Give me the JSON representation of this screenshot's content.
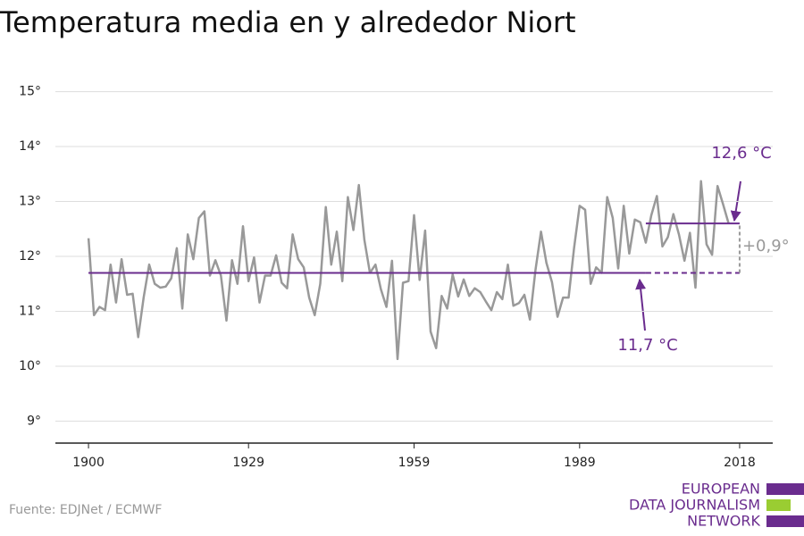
{
  "chart_data": {
    "type": "line",
    "title": "Temperatura media en y alrededor Niort",
    "source": "Fuente: EDJNet / ECMWF",
    "logo": [
      "EUROPEAN",
      "DATA JOURNALISM",
      "NETWORK"
    ],
    "x": [
      1900,
      1901,
      1902,
      1903,
      1904,
      1905,
      1906,
      1907,
      1908,
      1909,
      1910,
      1911,
      1912,
      1913,
      1914,
      1915,
      1916,
      1917,
      1918,
      1919,
      1920,
      1921,
      1922,
      1923,
      1924,
      1925,
      1926,
      1927,
      1928,
      1929,
      1930,
      1931,
      1932,
      1933,
      1934,
      1935,
      1936,
      1937,
      1938,
      1939,
      1940,
      1941,
      1942,
      1943,
      1944,
      1945,
      1946,
      1947,
      1948,
      1949,
      1950,
      1951,
      1952,
      1953,
      1954,
      1955,
      1956,
      1957,
      1958,
      1959,
      1960,
      1961,
      1962,
      1963,
      1964,
      1965,
      1966,
      1967,
      1968,
      1969,
      1970,
      1971,
      1972,
      1973,
      1974,
      1975,
      1976,
      1977,
      1978,
      1979,
      1980,
      1981,
      1982,
      1983,
      1984,
      1985,
      1986,
      1987,
      1988,
      1989,
      1990,
      1991,
      1992,
      1993,
      1994,
      1995,
      1996,
      1997,
      1998,
      1999,
      2000,
      2001,
      2002,
      2003,
      2004,
      2005,
      2006,
      2007,
      2008,
      2009,
      2010,
      2011,
      2012,
      2013,
      2014,
      2015,
      2016
    ],
    "series": [
      {
        "color": "#999999",
        "values": [
          12.33,
          10.93,
          11.08,
          11.02,
          11.85,
          11.16,
          11.95,
          11.3,
          11.32,
          10.53,
          11.25,
          11.85,
          11.5,
          11.43,
          11.45,
          11.6,
          12.15,
          11.05,
          12.4,
          11.95,
          12.7,
          12.82,
          11.65,
          11.93,
          11.65,
          10.83,
          11.93,
          11.5,
          12.55,
          11.55,
          11.98,
          11.16,
          11.65,
          11.65,
          12.02,
          11.52,
          11.42,
          12.4,
          11.95,
          11.8,
          11.25,
          10.93,
          11.5,
          12.9,
          11.85,
          12.45,
          11.55,
          13.08,
          12.48,
          13.3,
          12.3,
          11.7,
          11.85,
          11.4,
          11.08,
          11.92,
          10.13,
          11.52,
          11.55,
          12.75,
          11.57,
          12.47,
          10.63,
          10.33,
          11.28,
          11.05,
          11.67,
          11.27,
          11.58,
          11.28,
          11.42,
          11.35,
          11.18,
          11.02,
          11.35,
          11.22,
          11.85,
          11.1,
          11.15,
          11.3,
          10.85,
          11.75,
          12.45,
          11.88,
          11.53,
          10.9,
          11.25,
          11.25,
          12.15,
          12.92,
          12.85,
          11.5,
          11.8,
          11.7,
          13.08,
          12.7,
          11.78,
          12.92,
          12.05,
          12.67,
          12.62,
          12.25,
          12.75,
          13.1,
          12.18,
          12.35,
          12.77,
          12.4,
          11.92,
          12.43,
          11.43,
          13.37,
          12.22,
          12.03,
          13.28,
          12.95,
          12.6
        ]
      }
    ],
    "reference_lines": [
      {
        "value": 11.7,
        "label": "11,7 °C",
        "color": "#6a2c8e",
        "from": 1900,
        "dashed_from": 2001,
        "to": 2018
      },
      {
        "value": 12.6,
        "label": "12,6 °C",
        "color": "#6a2c8e",
        "from": 2001,
        "to": 2018
      }
    ],
    "difference_label": "+0,9°",
    "xlim": [
      1894,
      2024
    ],
    "xticks": [
      1900,
      1929,
      1959,
      1989,
      2018
    ],
    "ylim": [
      8.6,
      15.4
    ],
    "yticks": [
      {
        "value": 9,
        "label": "9°"
      },
      {
        "value": 10,
        "label": "10°"
      },
      {
        "value": 11,
        "label": "11°"
      },
      {
        "value": 12,
        "label": "12°"
      },
      {
        "value": 13,
        "label": "13°"
      },
      {
        "value": 14,
        "label": "14°"
      },
      {
        "value": 15,
        "label": "15°"
      }
    ],
    "grid": true
  }
}
